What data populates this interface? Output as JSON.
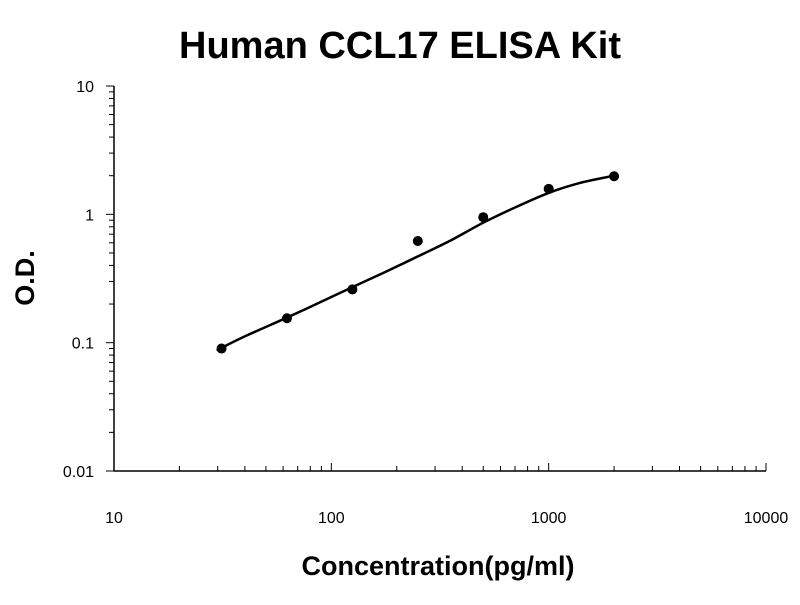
{
  "chart_data": {
    "type": "scatter",
    "title": "Human CCL17 ELISA Kit",
    "xlabel": "Concentration(pg/ml)",
    "ylabel": "O.D.",
    "x_scale": "log",
    "y_scale": "log",
    "xlim": [
      10,
      10000
    ],
    "ylim": [
      0.01,
      10
    ],
    "x_tick_labels": [
      "10",
      "100",
      "1000",
      "10000"
    ],
    "y_tick_labels": [
      "0.01",
      "0.1",
      "1",
      "10"
    ],
    "grid": false,
    "legend": "none",
    "series": [
      {
        "x": [
          31.25,
          62.5,
          125,
          250,
          500,
          1000,
          2000
        ],
        "y": [
          0.09,
          0.155,
          0.26,
          0.62,
          0.95,
          1.58,
          1.98
        ]
      }
    ],
    "trendline": {
      "x": [
        30,
        40,
        60,
        80,
        120,
        180,
        250,
        350,
        500,
        700,
        1000,
        1400,
        2000
      ],
      "y": [
        0.088,
        0.112,
        0.152,
        0.19,
        0.262,
        0.36,
        0.47,
        0.62,
        0.86,
        1.13,
        1.47,
        1.76,
        2.0
      ]
    },
    "colors": {
      "marker": "#000000",
      "line": "#000000",
      "axis": "#000000"
    }
  }
}
